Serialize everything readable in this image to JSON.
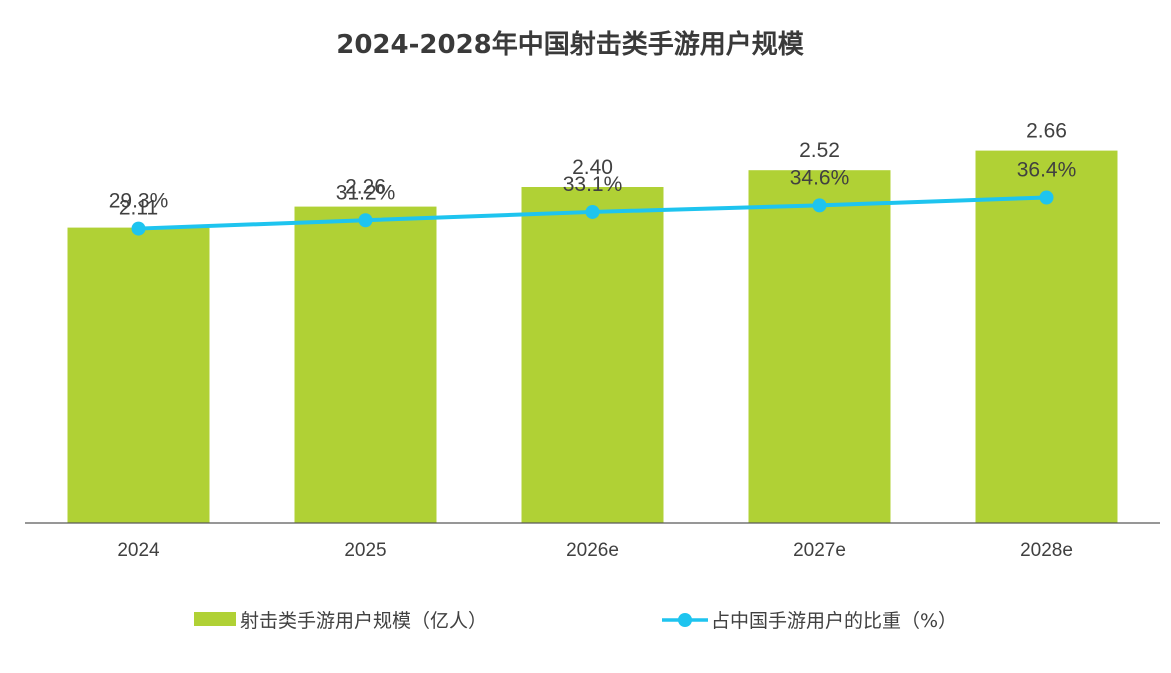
{
  "chart_data": {
    "type": "bar",
    "title": "2024-2028年中国射击类手游用户规模",
    "categories": [
      "2024",
      "2025",
      "2026e",
      "2027e",
      "2028e"
    ],
    "series": [
      {
        "name": "射击类手游用户规模（亿人）",
        "kind": "bar",
        "values": [
          2.11,
          2.26,
          2.4,
          2.52,
          2.66
        ],
        "labels": [
          "2.11",
          "2.26",
          "2.40",
          "2.52",
          "2.66"
        ],
        "color": "#b0d135"
      },
      {
        "name": "占中国手游用户的比重（%）",
        "kind": "line",
        "values": [
          29.3,
          31.2,
          33.1,
          34.6,
          36.4
        ],
        "labels": [
          "29.3%",
          "31.2%",
          "33.1%",
          "34.6%",
          "36.4%"
        ],
        "color": "#1ec4ef"
      }
    ],
    "xlabel": "",
    "ylabel": "",
    "ylim_bar": [
      0,
      3.0
    ],
    "ylim_line": [
      -38,
      58
    ],
    "grid": false,
    "legend_position": "bottom",
    "axis_color": "#595959"
  }
}
